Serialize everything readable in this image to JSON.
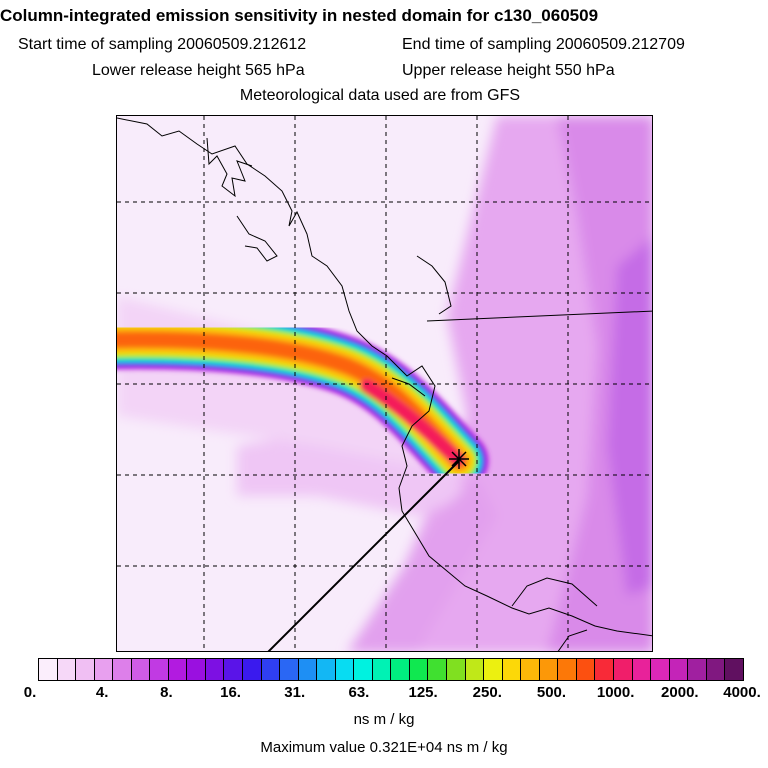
{
  "header": {
    "title": "Column-integrated emission sensitivity in nested domain for c130_060509",
    "start_time": "Start time of sampling 20060509.212612",
    "end_time": "End time of sampling 20060509.212709",
    "lower_release": "Lower release height  565 hPa",
    "upper_release": "Upper release height  550 hPa",
    "met_data": "Meteorological data used are from GFS"
  },
  "colorbar": {
    "labels": [
      "0.",
      "4.",
      "8.",
      "16.",
      "31.",
      "63.",
      "125.",
      "250.",
      "500.",
      "1000.",
      "2000.",
      "4000."
    ],
    "colors": [
      "#fbeefc",
      "#f6d8f8",
      "#f0bff3",
      "#e8a0ef",
      "#dd7fea",
      "#cf5ce6",
      "#c13ae3",
      "#b21be0",
      "#9a10e0",
      "#7d10e3",
      "#5a14e8",
      "#3a1aee",
      "#2f3ff2",
      "#2a67f4",
      "#1e8ff4",
      "#13b7f4",
      "#08dcf2",
      "#00f2e0",
      "#00f2b4",
      "#00ee80",
      "#10e850",
      "#40e030",
      "#80e020",
      "#c0e818",
      "#ecf010",
      "#fcd808",
      "#fcb808",
      "#fc9808",
      "#fc7808",
      "#fc5010",
      "#f82a38",
      "#f01e6a",
      "#e8229a",
      "#dc28b8",
      "#c424b8",
      "#a020a0",
      "#801880",
      "#601060"
    ],
    "units": "ns m / kg"
  },
  "footer": {
    "max_value": "Maximum value  0.321E+04 ns m / kg"
  }
}
